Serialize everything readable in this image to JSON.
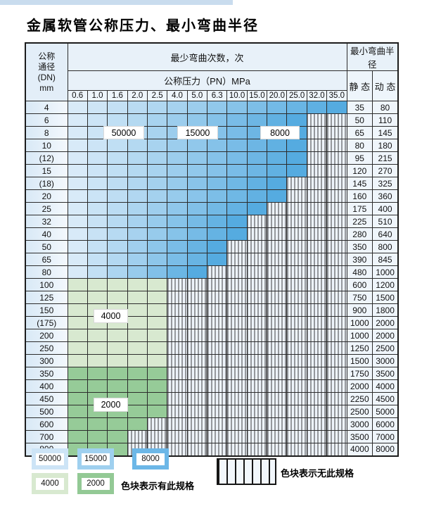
{
  "page": {
    "title": "金属软管公称压力、最小弯曲半径"
  },
  "table": {
    "headers": {
      "dn": [
        "公称",
        "通径",
        "(DN)",
        "mm"
      ],
      "bend_cycles": "最少弯曲次数，次",
      "pressure": "公称压力（PN）MPa",
      "bend_radius": "最小弯曲半径",
      "static": "静 态",
      "dynamic": "动 态"
    },
    "pressures": [
      "0.6",
      "1.0",
      "1.6",
      "2.0",
      "2.5",
      "4.0",
      "5.0",
      "6.3",
      "10.0",
      "15.0",
      "20.0",
      "25.0",
      "32.0",
      "35.0"
    ],
    "rows": [
      {
        "dn": "4",
        "colored_through": "35.0",
        "zone": "blue",
        "static": "35",
        "dynamic": "80"
      },
      {
        "dn": "6",
        "colored_through": "25.0",
        "zone": "blue",
        "static": "50",
        "dynamic": "110"
      },
      {
        "dn": "8",
        "colored_through": "25.0",
        "zone": "blue",
        "static": "65",
        "dynamic": "145"
      },
      {
        "dn": "10",
        "colored_through": "25.0",
        "zone": "blue",
        "static": "80",
        "dynamic": "180"
      },
      {
        "dn": "(12)",
        "colored_through": "25.0",
        "zone": "blue",
        "static": "95",
        "dynamic": "215"
      },
      {
        "dn": "15",
        "colored_through": "25.0",
        "zone": "blue",
        "static": "120",
        "dynamic": "270"
      },
      {
        "dn": "(18)",
        "colored_through": "20.0",
        "zone": "blue",
        "static": "145",
        "dynamic": "325"
      },
      {
        "dn": "20",
        "colored_through": "20.0",
        "zone": "blue",
        "static": "160",
        "dynamic": "360"
      },
      {
        "dn": "25",
        "colored_through": "15.0",
        "zone": "blue",
        "static": "175",
        "dynamic": "400"
      },
      {
        "dn": "32",
        "colored_through": "10.0",
        "zone": "blue",
        "static": "225",
        "dynamic": "510"
      },
      {
        "dn": "40",
        "colored_through": "10.0",
        "zone": "blue",
        "static": "280",
        "dynamic": "640"
      },
      {
        "dn": "50",
        "colored_through": "6.3",
        "zone": "blue",
        "static": "350",
        "dynamic": "800"
      },
      {
        "dn": "65",
        "colored_through": "6.3",
        "zone": "blue",
        "static": "390",
        "dynamic": "845"
      },
      {
        "dn": "80",
        "colored_through": "5.0",
        "zone": "blue",
        "static": "480",
        "dynamic": "1000"
      },
      {
        "dn": "100",
        "colored_through": "2.5",
        "zone": "green-light",
        "static": "600",
        "dynamic": "1200"
      },
      {
        "dn": "125",
        "colored_through": "2.5",
        "zone": "green-light",
        "static": "750",
        "dynamic": "1500"
      },
      {
        "dn": "150",
        "colored_through": "2.5",
        "zone": "green-light",
        "static": "900",
        "dynamic": "1800"
      },
      {
        "dn": "(175)",
        "colored_through": "2.5",
        "zone": "green-light",
        "static": "1000",
        "dynamic": "2000"
      },
      {
        "dn": "200",
        "colored_through": "2.5",
        "zone": "green-light",
        "static": "1000",
        "dynamic": "2000"
      },
      {
        "dn": "250",
        "colored_through": "2.5",
        "zone": "green-light",
        "static": "1250",
        "dynamic": "2500"
      },
      {
        "dn": "300",
        "colored_through": "2.5",
        "zone": "green-light",
        "static": "1500",
        "dynamic": "3000"
      },
      {
        "dn": "350",
        "colored_through": "2.5",
        "zone": "green-mid",
        "static": "1750",
        "dynamic": "3500"
      },
      {
        "dn": "400",
        "colored_through": "2.5",
        "zone": "green-mid",
        "static": "2000",
        "dynamic": "4000"
      },
      {
        "dn": "450",
        "colored_through": "2.5",
        "zone": "green-mid",
        "static": "2250",
        "dynamic": "4500"
      },
      {
        "dn": "500",
        "colored_through": "2.5",
        "zone": "green-mid",
        "static": "2500",
        "dynamic": "5000"
      },
      {
        "dn": "600",
        "colored_through": "2.0",
        "zone": "green-mid",
        "static": "3000",
        "dynamic": "6000"
      },
      {
        "dn": "700",
        "colored_through": "1.6",
        "zone": "green-mid",
        "static": "3500",
        "dynamic": "7000"
      },
      {
        "dn": "800",
        "colored_through": "1.6",
        "zone": "green-mid",
        "static": "4000",
        "dynamic": "8000"
      }
    ],
    "region_labels": {
      "b50000": "50000",
      "b15000": "15000",
      "b8000": "8000",
      "g4000": "4000",
      "g2000": "2000"
    }
  },
  "legend": {
    "swatches": [
      {
        "label": "50000",
        "color": "#cde4f6"
      },
      {
        "label": "15000",
        "color": "#9fd0ef"
      },
      {
        "label": "8000",
        "color": "#6cb7e7"
      },
      {
        "label": "4000",
        "color": "#d8e9d0"
      },
      {
        "label": "2000",
        "color": "#93c995"
      }
    ],
    "has_spec_note": "色块表示有此规格",
    "no_spec_note": "色块表示无此规格"
  },
  "colors": {
    "blue_light": "#d8eaf8",
    "blue_dark": "#55abe0",
    "green_light": "#d8e9d0",
    "green_mid": "#96cb98",
    "stripe_bg": "#eef4fb"
  }
}
